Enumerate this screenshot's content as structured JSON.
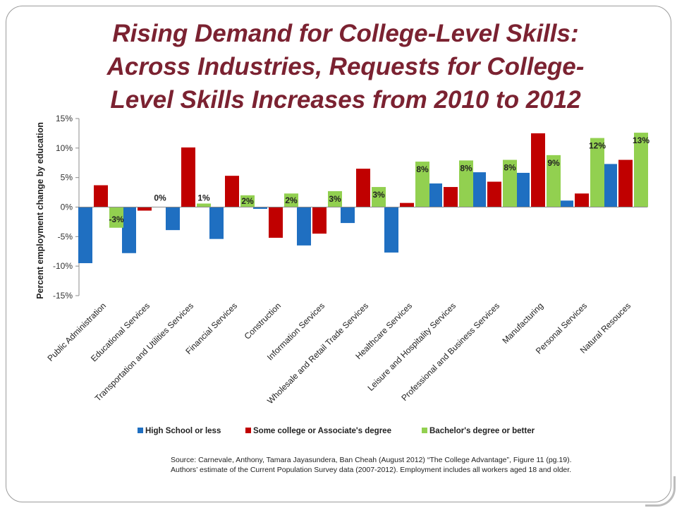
{
  "slide": {
    "title_lines": [
      "Rising Demand for College-Level Skills:",
      "Across Industries, Requests for College-",
      "Level Skills Increases from 2010 to 2012"
    ],
    "source_lines": [
      "Source: Carnevale, Anthony, Tamara Jayasundera, Ban Cheah (August 2012) “The College Advantage”, Figure 11 (pg.19).",
      "Authors’ estimate of the Current Population Survey data (2007-2012). Employment includes all workers aged 18 and older."
    ]
  },
  "chart_data": {
    "type": "bar",
    "title": "",
    "xlabel": "",
    "ylabel": "Percent employment change by education",
    "ylim": [
      -15,
      15
    ],
    "yticks": [
      15,
      10,
      5,
      0,
      -5,
      -10,
      -15
    ],
    "ytick_labels": [
      "15%",
      "10%",
      "5%",
      "0%",
      "-5%",
      "-10%",
      "-15%"
    ],
    "grid": false,
    "legend_position": "bottom",
    "categories": [
      "Public Administration",
      "Educational Services",
      "Transportation and Utilities Services",
      "Financial Services",
      "Construction",
      "Information Services",
      "Wholesale and Retail Trade Services",
      "Healthcare Services",
      "Leisure and Hospitality Services",
      "Professional and Business Services",
      "Manufacturing",
      "Personal Services",
      "Natural Resouces"
    ],
    "series": [
      {
        "name": "High School or less",
        "color": "#1f6fc1",
        "values": [
          -9.5,
          -7.8,
          -3.9,
          -5.4,
          -0.3,
          -6.5,
          -2.7,
          -7.7,
          4.0,
          5.9,
          5.8,
          1.1,
          7.3
        ]
      },
      {
        "name": "Some college or Associate's degree",
        "color": "#c00000",
        "values": [
          3.7,
          -0.6,
          10.1,
          5.3,
          -5.2,
          -4.5,
          6.5,
          0.7,
          3.4,
          4.3,
          12.5,
          2.3,
          8.0
        ]
      },
      {
        "name": "Bachelor's degree or better",
        "color": "#92d050",
        "values": [
          -3.5,
          0,
          0.6,
          2.0,
          2.3,
          2.7,
          3.4,
          7.7,
          7.9,
          8.0,
          8.8,
          11.7,
          12.6
        ],
        "data_labels": [
          "-3%",
          "0%",
          "1%",
          "2%",
          "2%",
          "3%",
          "3%",
          "8%",
          "8%",
          "8%",
          "9%",
          "12%",
          "13%"
        ]
      }
    ]
  }
}
